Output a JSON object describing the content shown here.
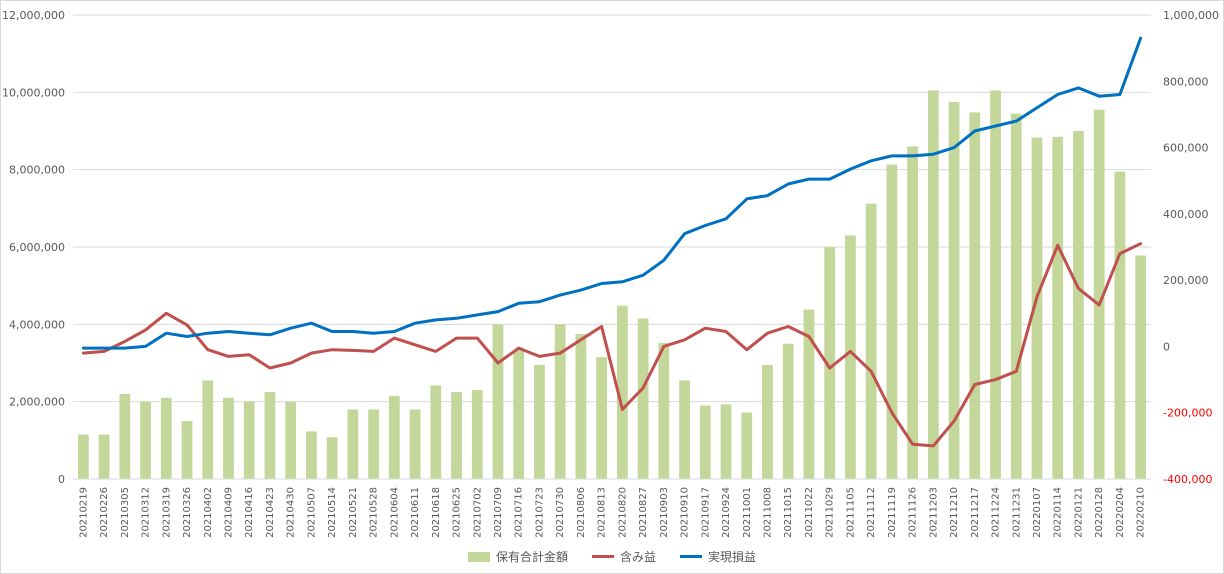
{
  "chart_data": {
    "type": "bar",
    "categories": [
      "20210219",
      "20210226",
      "20210305",
      "20210312",
      "20210319",
      "20210326",
      "20210402",
      "20210409",
      "20210416",
      "20210423",
      "20210430",
      "20210507",
      "20210514",
      "20210521",
      "20210528",
      "20210604",
      "20210611",
      "20210618",
      "20210625",
      "20210702",
      "20210709",
      "20210716",
      "20210723",
      "20210730",
      "20210806",
      "20210813",
      "20210820",
      "20210827",
      "20210903",
      "20210910",
      "20210917",
      "20210924",
      "20211001",
      "20211008",
      "20211015",
      "20211022",
      "20211029",
      "20211105",
      "20211112",
      "20211119",
      "20211126",
      "20211203",
      "20211210",
      "20211217",
      "20211224",
      "20211231",
      "20220107",
      "20220114",
      "20220121",
      "20220128",
      "20220204",
      "20220210"
    ],
    "y_left": {
      "min": 0,
      "max": 12000000,
      "step": 2000000,
      "ticks": [
        "0",
        "2,000,000",
        "4,000,000",
        "6,000,000",
        "8,000,000",
        "10,000,000",
        "12,000,000"
      ]
    },
    "y_right": {
      "min": -400000,
      "max": 1000000,
      "step": 200000,
      "ticks": [
        "-400,000",
        "-200,000",
        "0",
        "200,000",
        "400,000",
        "600,000",
        "800,000",
        "1,000,000"
      ]
    },
    "grid": true,
    "legend_position": "bottom",
    "series": [
      {
        "name": "保有合計金額",
        "kind": "bar",
        "axis": "left",
        "color": "#c4d79b",
        "values": [
          1150000,
          1150000,
          2200000,
          2000000,
          2100000,
          1500000,
          2550000,
          2100000,
          2000000,
          2250000,
          2000000,
          1230000,
          1080000,
          1800000,
          1800000,
          2150000,
          1800000,
          2420000,
          2250000,
          2300000,
          4000000,
          3350000,
          2950000,
          4000000,
          3750000,
          3150000,
          4480000,
          4150000,
          3520000,
          2550000,
          1900000,
          1930000,
          1720000,
          2950000,
          3500000,
          4380000,
          6000000,
          6300000,
          7120000,
          8130000,
          8600000,
          10050000,
          9750000,
          9480000,
          10050000,
          9450000,
          8830000,
          8850000,
          9000000,
          9550000,
          7950000,
          5780000
        ]
      },
      {
        "name": "含み益",
        "kind": "line",
        "axis": "right",
        "color": "#c0504d",
        "values": [
          -20000,
          -15000,
          15000,
          50000,
          100000,
          65000,
          -10000,
          -30000,
          -25000,
          -65000,
          -50000,
          -20000,
          -10000,
          -12000,
          -15000,
          25000,
          5000,
          -15000,
          25000,
          25000,
          -50000,
          -5000,
          -30000,
          -20000,
          20000,
          60000,
          -190000,
          -125000,
          0,
          20000,
          55000,
          45000,
          -10000,
          40000,
          60000,
          30000,
          -65000,
          -15000,
          -75000,
          -200000,
          -295000,
          -300000,
          -225000,
          -115000,
          -100000,
          -75000,
          150000,
          305000,
          175000,
          125000,
          280000,
          310000
        ]
      },
      {
        "name": "実現損益",
        "kind": "line",
        "axis": "right",
        "color": "#0070c0",
        "values": [
          -5000,
          -5000,
          -5000,
          0,
          40000,
          30000,
          40000,
          45000,
          40000,
          35000,
          55000,
          70000,
          45000,
          45000,
          40000,
          45000,
          70000,
          80000,
          85000,
          95000,
          105000,
          130000,
          135000,
          155000,
          170000,
          190000,
          195000,
          215000,
          260000,
          340000,
          365000,
          385000,
          445000,
          455000,
          490000,
          505000,
          505000,
          535000,
          560000,
          575000,
          575000,
          580000,
          600000,
          650000,
          665000,
          680000,
          720000,
          760000,
          780000,
          755000,
          760000,
          930000
        ]
      }
    ]
  }
}
